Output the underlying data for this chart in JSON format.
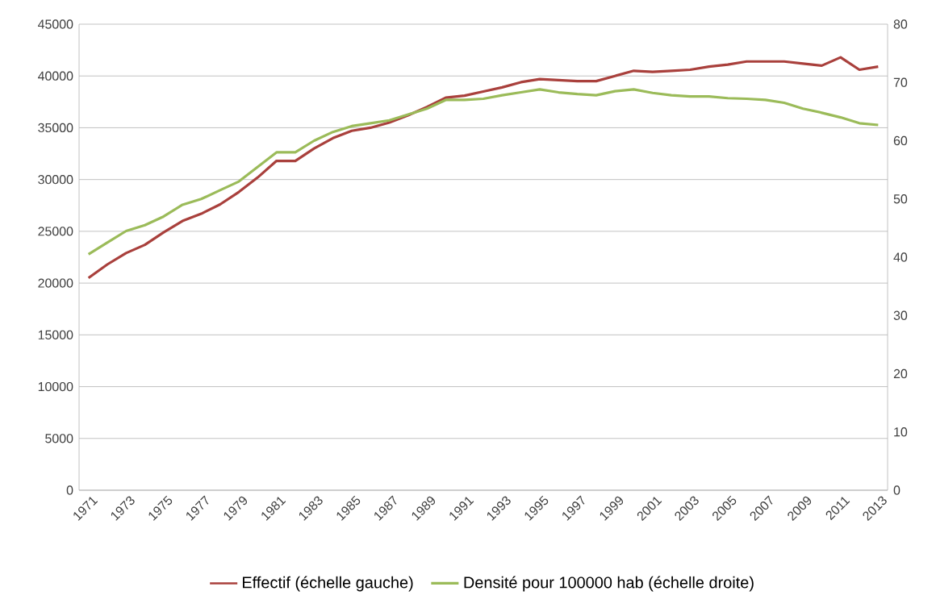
{
  "chart_data": {
    "type": "line",
    "categories": [
      "1971",
      null,
      "1973",
      null,
      "1975",
      null,
      "1977",
      null,
      "1979",
      null,
      "1981",
      null,
      "1983",
      null,
      "1985",
      null,
      "1987",
      null,
      "1989",
      null,
      "1991",
      null,
      "1993",
      null,
      "1995",
      null,
      "1997",
      null,
      "1999",
      null,
      "2001",
      null,
      "2003",
      null,
      "2005",
      null,
      "2007",
      null,
      "2009",
      null,
      "2011",
      null,
      "2013"
    ],
    "series": [
      {
        "name": "Effectif (échelle gauche)",
        "color": "#a9403c",
        "values": [
          20500,
          21800,
          22900,
          23700,
          24900,
          26000,
          26700,
          27600,
          28800,
          30200,
          31800,
          31800,
          33000,
          34000,
          34700,
          35000,
          35500,
          36200,
          37000,
          37900,
          38100,
          38500,
          38900,
          39400,
          39700,
          39600,
          39500,
          39500,
          40000,
          40500,
          40400,
          40500,
          40600,
          40900,
          41100,
          41400,
          41400,
          41400,
          41200,
          41000,
          41800,
          40600,
          40900
        ]
      },
      {
        "name": "Densité pour 100000 hab (échelle droite)",
        "color": "#9bbb59",
        "axis": "y2",
        "values": [
          40.5,
          42.5,
          44.5,
          45.5,
          47,
          49,
          50,
          51.5,
          53,
          55.5,
          58,
          58,
          60,
          61.5,
          62.5,
          63,
          63.5,
          64.5,
          65.5,
          67,
          67,
          67.2,
          67.8,
          68.3,
          68.8,
          68.3,
          68,
          67.8,
          68.5,
          68.8,
          68.2,
          67.8,
          67.6,
          67.6,
          67.3,
          67.2,
          67,
          66.5,
          65.5,
          64.8,
          64,
          63,
          62.7
        ]
      }
    ],
    "ylim": [
      0,
      45000
    ],
    "yticks": [
      0,
      5000,
      10000,
      15000,
      20000,
      25000,
      30000,
      35000,
      40000,
      45000
    ],
    "y2lim": [
      0,
      80
    ],
    "y2ticks": [
      0,
      10,
      20,
      30,
      40,
      50,
      60,
      70,
      80
    ],
    "grid": "y",
    "legend": "bottom"
  }
}
